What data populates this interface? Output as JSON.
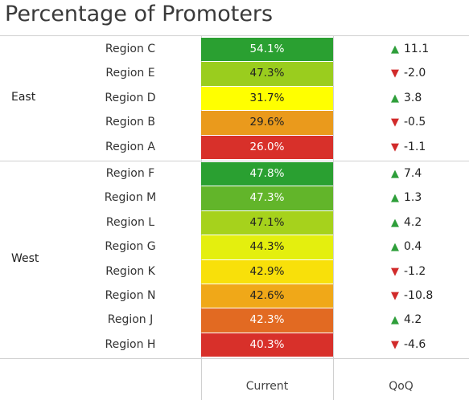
{
  "title": "Percentage of Promoters",
  "columns": {
    "current": "Current",
    "qoq": "QoQ"
  },
  "colors": {
    "up": "#2e9e3a",
    "down": "#d12a2a"
  },
  "groups": [
    {
      "name": "East",
      "rows": [
        {
          "region": "Region C",
          "current": "54.1%",
          "qoq": "11.1",
          "dir": "up",
          "bg": "#2aa031",
          "fg": "#ffffff"
        },
        {
          "region": "Region E",
          "current": "47.3%",
          "qoq": "-2.0",
          "dir": "down",
          "bg": "#9acd1e",
          "fg": "#222222"
        },
        {
          "region": "Region D",
          "current": "31.7%",
          "qoq": "3.8",
          "dir": "up",
          "bg": "#ffff00",
          "fg": "#222222"
        },
        {
          "region": "Region B",
          "current": "29.6%",
          "qoq": "-0.5",
          "dir": "down",
          "bg": "#ea9a1c",
          "fg": "#222222"
        },
        {
          "region": "Region A",
          "current": "26.0%",
          "qoq": "-1.1",
          "dir": "down",
          "bg": "#d8302a",
          "fg": "#ffffff"
        }
      ]
    },
    {
      "name": "West",
      "rows": [
        {
          "region": "Region F",
          "current": "47.8%",
          "qoq": "7.4",
          "dir": "up",
          "bg": "#2aa031",
          "fg": "#ffffff"
        },
        {
          "region": "Region M",
          "current": "47.3%",
          "qoq": "1.3",
          "dir": "up",
          "bg": "#62b52a",
          "fg": "#ffffff"
        },
        {
          "region": "Region L",
          "current": "47.1%",
          "qoq": "4.2",
          "dir": "up",
          "bg": "#a6d21c",
          "fg": "#222222"
        },
        {
          "region": "Region G",
          "current": "44.3%",
          "qoq": "0.4",
          "dir": "up",
          "bg": "#e4ef0e",
          "fg": "#222222"
        },
        {
          "region": "Region K",
          "current": "42.9%",
          "qoq": "-1.2",
          "dir": "down",
          "bg": "#f8e00a",
          "fg": "#222222"
        },
        {
          "region": "Region N",
          "current": "42.6%",
          "qoq": "-10.8",
          "dir": "down",
          "bg": "#f0a818",
          "fg": "#222222"
        },
        {
          "region": "Region J",
          "current": "42.3%",
          "qoq": "4.2",
          "dir": "up",
          "bg": "#e26a22",
          "fg": "#ffffff"
        },
        {
          "region": "Region H",
          "current": "40.3%",
          "qoq": "-4.6",
          "dir": "down",
          "bg": "#d8302a",
          "fg": "#ffffff"
        }
      ]
    }
  ]
}
